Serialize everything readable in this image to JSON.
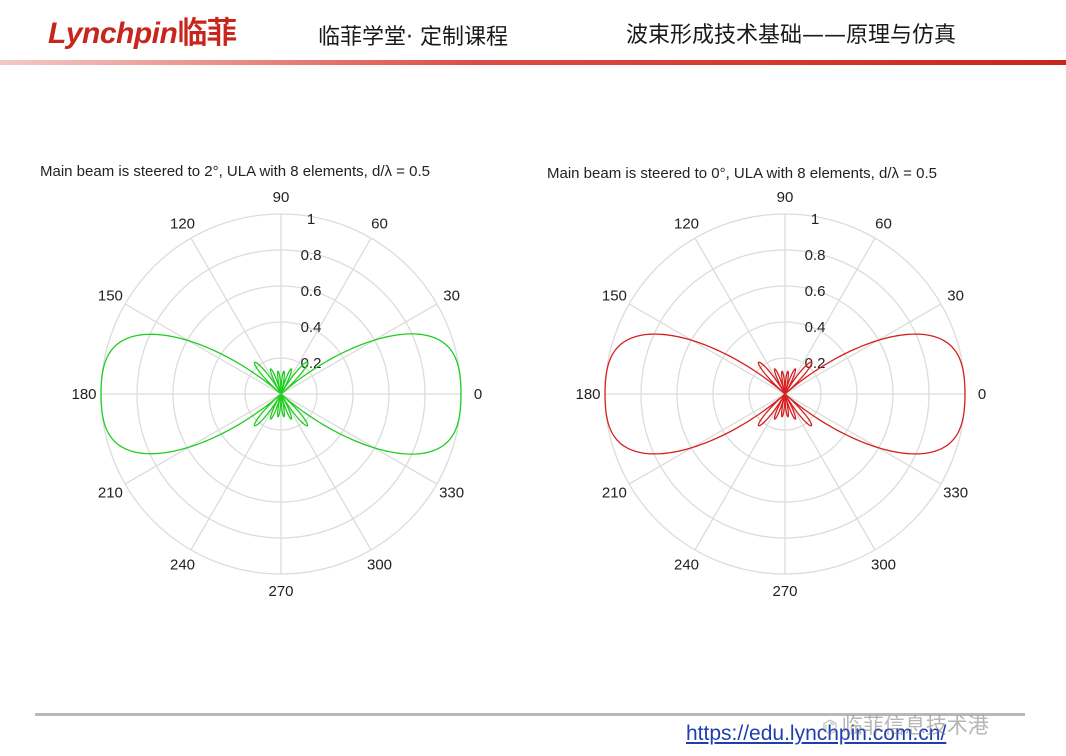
{
  "header": {
    "logo_text": "Lynchpin",
    "logo_cn": "临菲",
    "course": "临菲学堂· 定制课程",
    "topic": "波束形成技术基础——原理与仿真",
    "accent_color": "#c8261c"
  },
  "chart_data": [
    {
      "type": "polar-line",
      "title": "Main beam is steered  to 2°, ULA with 8 elements, d/λ = 0.5",
      "steer_deg": 2,
      "elements": 8,
      "d_over_lambda": 0.5,
      "r_ticks": [
        "0.2",
        "0.4",
        "0.6",
        "0.8",
        "1"
      ],
      "r_max": 1,
      "angle_ticks": [
        "0",
        "30",
        "60",
        "90",
        "120",
        "150",
        "180",
        "210",
        "240",
        "270",
        "300",
        "330"
      ],
      "grid": true,
      "color": "#22cc22"
    },
    {
      "type": "polar-line",
      "title": "Main beam is steered  to 0°, ULA with 8 elements, d/λ = 0.5",
      "steer_deg": 0,
      "elements": 8,
      "d_over_lambda": 0.5,
      "r_ticks": [
        "0.2",
        "0.4",
        "0.6",
        "0.8",
        "1"
      ],
      "r_max": 1,
      "angle_ticks": [
        "0",
        "30",
        "60",
        "90",
        "120",
        "150",
        "180",
        "210",
        "240",
        "270",
        "300",
        "330"
      ],
      "grid": true,
      "color": "#d62020"
    }
  ],
  "footer": {
    "url": "https://edu.lynchpin.com.cn/",
    "watermark": "临菲信息技术港",
    "watermark_icon": "wechat-icon"
  }
}
